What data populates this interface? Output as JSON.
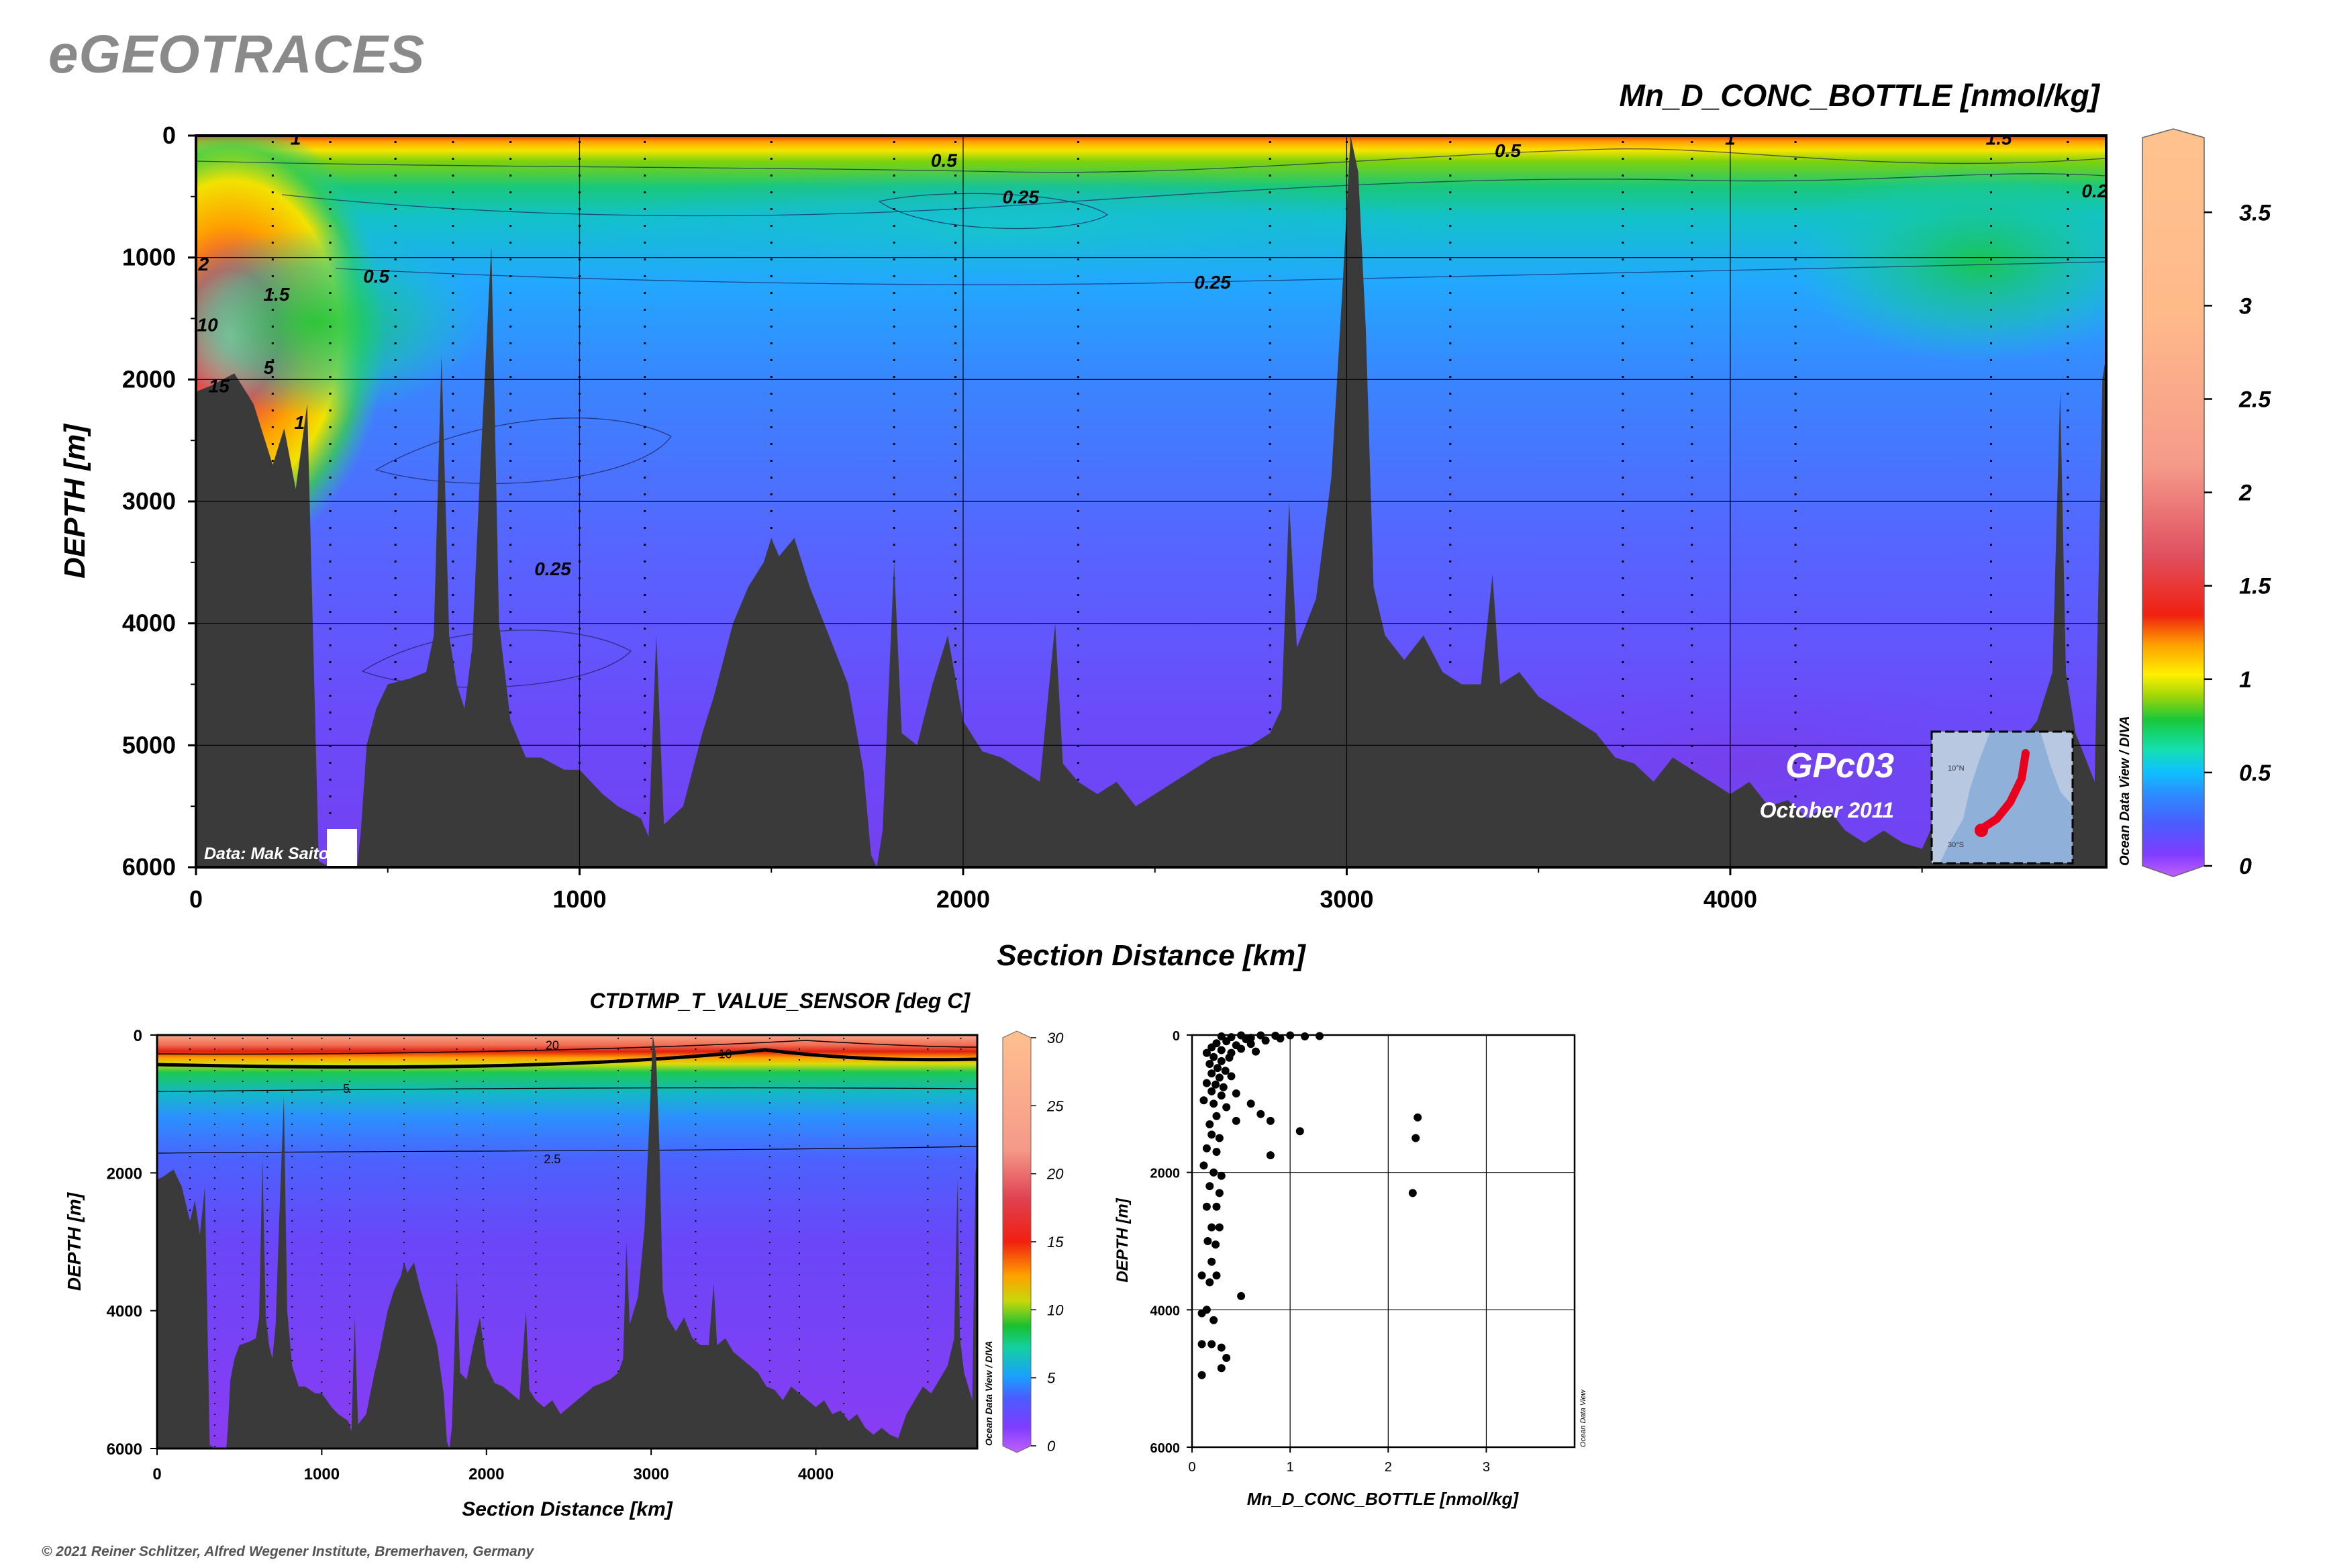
{
  "brand": "eGEOTRACES",
  "copyright": "© 2021 Reiner Schlitzer, Alfred Wegener Institute, Bremerhaven, Germany",
  "section_text": {
    "credit": "Data: Mak Saito",
    "cruise": "GPc03",
    "date": "October 2011",
    "software": "Ocean Data View / DIVA",
    "inset_lat_top": "10°N",
    "inset_lat_bottom": "30°S"
  },
  "scatter_text": {
    "software": "Ocean Data View"
  },
  "colors": {
    "bathymetry": "#3a3a3a",
    "accent_track": "#e8001c"
  },
  "chart_data": [
    {
      "type": "heatmap",
      "title": "Mn_D_CONC_BOTTLE [nmol/kg]",
      "xlabel": "Section Distance [km]",
      "ylabel": "DEPTH [m]",
      "xlim": [
        0,
        4980
      ],
      "ylim": [
        6000,
        0
      ],
      "x_ticks": [
        0,
        1000,
        2000,
        3000,
        4000
      ],
      "y_ticks": [
        0,
        1000,
        2000,
        3000,
        4000,
        5000,
        6000
      ],
      "colorbar": {
        "min": 0,
        "max": 3.9,
        "ticks": [
          0,
          0.5,
          1,
          1.5,
          2,
          2.5,
          3,
          3.5
        ]
      },
      "contour_labels": [
        {
          "value": "0.5",
          "x": 1950,
          "y": 200
        },
        {
          "value": "0.5",
          "x": 3420,
          "y": 120
        },
        {
          "value": "0.5",
          "x": 470,
          "y": 1150
        },
        {
          "value": "0.25",
          "x": 2150,
          "y": 500
        },
        {
          "value": "0.25",
          "x": 2650,
          "y": 1200
        },
        {
          "value": "0.25",
          "x": 930,
          "y": 3550
        },
        {
          "value": "0.2",
          "x": 4950,
          "y": 450
        },
        {
          "value": "1",
          "x": 260,
          "y": 20
        },
        {
          "value": "1",
          "x": 4000,
          "y": 20
        },
        {
          "value": "1.5",
          "x": 4700,
          "y": 20
        },
        {
          "value": "1",
          "x": 270,
          "y": 2350
        },
        {
          "value": "1.5",
          "x": 210,
          "y": 1300
        },
        {
          "value": "2",
          "x": 20,
          "y": 1050
        },
        {
          "value": "10",
          "x": 30,
          "y": 1550
        },
        {
          "value": "5",
          "x": 190,
          "y": 1900
        },
        {
          "value": "15",
          "x": 60,
          "y": 2050
        }
      ],
      "stations_km": [
        200,
        350,
        520,
        670,
        820,
        1000,
        1170,
        1500,
        1820,
        1980,
        2300,
        2800,
        3000,
        3270,
        3720,
        3900,
        4170,
        4680,
        4880
      ],
      "bathymetry_depth_m": [
        [
          0,
          2100
        ],
        [
          40,
          2050
        ],
        [
          100,
          1950
        ],
        [
          150,
          2200
        ],
        [
          200,
          2700
        ],
        [
          230,
          2400
        ],
        [
          260,
          2900
        ],
        [
          290,
          2200
        ],
        [
          320,
          5950
        ],
        [
          350,
          6000
        ],
        [
          420,
          6000
        ],
        [
          430,
          5700
        ],
        [
          445,
          5000
        ],
        [
          470,
          4700
        ],
        [
          500,
          4500
        ],
        [
          560,
          4450
        ],
        [
          600,
          4400
        ],
        [
          620,
          4100
        ],
        [
          640,
          1800
        ],
        [
          660,
          4100
        ],
        [
          680,
          4500
        ],
        [
          700,
          4700
        ],
        [
          720,
          4200
        ],
        [
          740,
          2800
        ],
        [
          770,
          900
        ],
        [
          790,
          4000
        ],
        [
          820,
          4800
        ],
        [
          860,
          5100
        ],
        [
          900,
          5100
        ],
        [
          960,
          5200
        ],
        [
          1000,
          5200
        ],
        [
          1060,
          5400
        ],
        [
          1100,
          5500
        ],
        [
          1160,
          5600
        ],
        [
          1180,
          5750
        ],
        [
          1200,
          4100
        ],
        [
          1220,
          5650
        ],
        [
          1270,
          5500
        ],
        [
          1320,
          4900
        ],
        [
          1350,
          4600
        ],
        [
          1400,
          4000
        ],
        [
          1440,
          3700
        ],
        [
          1480,
          3500
        ],
        [
          1500,
          3300
        ],
        [
          1520,
          3450
        ],
        [
          1560,
          3300
        ],
        [
          1600,
          3700
        ],
        [
          1650,
          4100
        ],
        [
          1700,
          4500
        ],
        [
          1740,
          5200
        ],
        [
          1760,
          5900
        ],
        [
          1775,
          6000
        ],
        [
          1790,
          5700
        ],
        [
          1820,
          3500
        ],
        [
          1840,
          4900
        ],
        [
          1880,
          5000
        ],
        [
          1920,
          4500
        ],
        [
          1960,
          4100
        ],
        [
          2000,
          4800
        ],
        [
          2050,
          5050
        ],
        [
          2100,
          5100
        ],
        [
          2150,
          5200
        ],
        [
          2200,
          5300
        ],
        [
          2240,
          4000
        ],
        [
          2260,
          5150
        ],
        [
          2300,
          5300
        ],
        [
          2350,
          5400
        ],
        [
          2400,
          5300
        ],
        [
          2450,
          5500
        ],
        [
          2500,
          5400
        ],
        [
          2550,
          5300
        ],
        [
          2600,
          5200
        ],
        [
          2650,
          5100
        ],
        [
          2700,
          5050
        ],
        [
          2750,
          5000
        ],
        [
          2800,
          4900
        ],
        [
          2830,
          4700
        ],
        [
          2850,
          3000
        ],
        [
          2870,
          4200
        ],
        [
          2920,
          3800
        ],
        [
          2960,
          2800
        ],
        [
          2990,
          1200
        ],
        [
          3010,
          0
        ],
        [
          3030,
          300
        ],
        [
          3050,
          1600
        ],
        [
          3070,
          3700
        ],
        [
          3100,
          4100
        ],
        [
          3150,
          4300
        ],
        [
          3200,
          4100
        ],
        [
          3250,
          4400
        ],
        [
          3300,
          4500
        ],
        [
          3350,
          4500
        ],
        [
          3380,
          3600
        ],
        [
          3400,
          4500
        ],
        [
          3450,
          4400
        ],
        [
          3500,
          4600
        ],
        [
          3550,
          4700
        ],
        [
          3600,
          4800
        ],
        [
          3650,
          4900
        ],
        [
          3700,
          5100
        ],
        [
          3750,
          5150
        ],
        [
          3800,
          5300
        ],
        [
          3850,
          5100
        ],
        [
          3900,
          5200
        ],
        [
          3950,
          5300
        ],
        [
          4000,
          5400
        ],
        [
          4050,
          5300
        ],
        [
          4100,
          5500
        ],
        [
          4150,
          5450
        ],
        [
          4200,
          5600
        ],
        [
          4250,
          5500
        ],
        [
          4300,
          5700
        ],
        [
          4350,
          5800
        ],
        [
          4400,
          5700
        ],
        [
          4450,
          5800
        ],
        [
          4500,
          5850
        ],
        [
          4550,
          5500
        ],
        [
          4600,
          5300
        ],
        [
          4650,
          5100
        ],
        [
          4700,
          5200
        ],
        [
          4750,
          5000
        ],
        [
          4800,
          4800
        ],
        [
          4840,
          4400
        ],
        [
          4860,
          2100
        ],
        [
          4875,
          4400
        ],
        [
          4900,
          4900
        ],
        [
          4950,
          5300
        ],
        [
          4970,
          2000
        ],
        [
          4980,
          1800
        ]
      ]
    },
    {
      "type": "heatmap",
      "title": "CTDTMP_T_VALUE_SENSOR [deg C]",
      "xlabel": "Section Distance [km]",
      "ylabel": "DEPTH [m]",
      "xlim": [
        0,
        4980
      ],
      "ylim": [
        6000,
        0
      ],
      "x_ticks": [
        0,
        1000,
        2000,
        3000,
        4000
      ],
      "y_ticks": [
        0,
        2000,
        4000,
        6000
      ],
      "colorbar": {
        "min": 0,
        "max": 30,
        "ticks": [
          0,
          5,
          10,
          15,
          20,
          25,
          30
        ]
      },
      "contour_labels": [
        {
          "value": "20",
          "x": 2400,
          "y": 150
        },
        {
          "value": "10",
          "x": 3450,
          "y": 280
        },
        {
          "value": "5",
          "x": 1150,
          "y": 780
        },
        {
          "value": "2.5",
          "x": 2400,
          "y": 1800
        }
      ]
    },
    {
      "type": "scatter",
      "xlabel": "Mn_D_CONC_BOTTLE [nmol/kg]",
      "ylabel": "DEPTH [m]",
      "xlim": [
        0,
        3.9
      ],
      "ylim": [
        6000,
        0
      ],
      "x_ticks": [
        0,
        1,
        2,
        3
      ],
      "y_ticks": [
        0,
        2000,
        4000,
        6000
      ],
      "points": [
        [
          0.5,
          5
        ],
        [
          0.7,
          5
        ],
        [
          0.85,
          10
        ],
        [
          1.0,
          5
        ],
        [
          1.15,
          20
        ],
        [
          1.3,
          15
        ],
        [
          0.6,
          40
        ],
        [
          0.4,
          30
        ],
        [
          0.3,
          20
        ],
        [
          0.55,
          60
        ],
        [
          0.75,
          80
        ],
        [
          0.9,
          50
        ],
        [
          0.35,
          90
        ],
        [
          0.25,
          120
        ],
        [
          0.45,
          150
        ],
        [
          0.6,
          130
        ],
        [
          0.2,
          180
        ],
        [
          0.3,
          220
        ],
        [
          0.4,
          260
        ],
        [
          0.5,
          200
        ],
        [
          0.65,
          240
        ],
        [
          0.15,
          260
        ],
        [
          0.22,
          320
        ],
        [
          0.3,
          380
        ],
        [
          0.38,
          330
        ],
        [
          0.18,
          420
        ],
        [
          0.26,
          480
        ],
        [
          0.34,
          520
        ],
        [
          0.2,
          560
        ],
        [
          0.28,
          620
        ],
        [
          0.4,
          600
        ],
        [
          0.15,
          700
        ],
        [
          0.24,
          720
        ],
        [
          0.32,
          760
        ],
        [
          0.2,
          820
        ],
        [
          0.3,
          880
        ],
        [
          0.45,
          850
        ],
        [
          0.12,
          950
        ],
        [
          0.22,
          1000
        ],
        [
          0.35,
          1050
        ],
        [
          0.6,
          1000
        ],
        [
          0.7,
          1150
        ],
        [
          0.25,
          1180
        ],
        [
          0.45,
          1250
        ],
        [
          0.18,
          1300
        ],
        [
          0.8,
          1250
        ],
        [
          1.1,
          1400
        ],
        [
          0.2,
          1450
        ],
        [
          0.28,
          1500
        ],
        [
          0.15,
          1650
        ],
        [
          0.25,
          1700
        ],
        [
          0.8,
          1750
        ],
        [
          0.12,
          1900
        ],
        [
          0.22,
          2000
        ],
        [
          0.3,
          2050
        ],
        [
          0.18,
          2200
        ],
        [
          0.28,
          2300
        ],
        [
          0.15,
          2500
        ],
        [
          0.25,
          2500
        ],
        [
          0.2,
          2800
        ],
        [
          0.28,
          2800
        ],
        [
          0.16,
          3000
        ],
        [
          0.24,
          3050
        ],
        [
          0.2,
          3300
        ],
        [
          0.1,
          3500
        ],
        [
          0.18,
          3600
        ],
        [
          0.25,
          3500
        ],
        [
          0.5,
          3800
        ],
        [
          0.15,
          4000
        ],
        [
          0.1,
          4050
        ],
        [
          0.22,
          4150
        ],
        [
          0.1,
          4500
        ],
        [
          0.2,
          4500
        ],
        [
          0.3,
          4550
        ],
        [
          0.35,
          4700
        ],
        [
          0.3,
          4850
        ],
        [
          0.1,
          4950
        ],
        [
          2.3,
          1200
        ],
        [
          2.28,
          1500
        ],
        [
          2.25,
          2300
        ]
      ]
    }
  ]
}
